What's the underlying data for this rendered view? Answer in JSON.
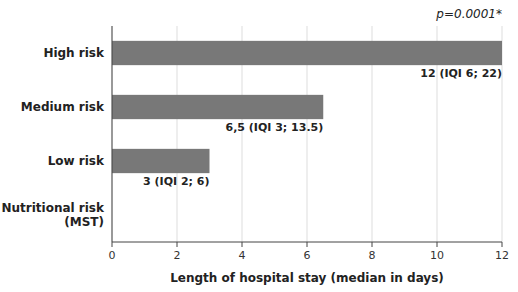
{
  "chart_data": {
    "type": "bar",
    "orientation": "horizontal",
    "categories": [
      "Nutritional risk\n(MST)",
      "Low risk",
      "Medium risk",
      "High risk"
    ],
    "values": [
      0,
      3,
      6.5,
      12
    ],
    "data_labels": true,
    "value_labels": [
      null,
      "3 (IQI 2; 6)",
      "6,5 (IQI 3; 13.5)",
      "12 (IQI 6; 22)"
    ],
    "color": "#787878",
    "xlabel": "Length of hospital stay (median in days)",
    "xlim": [
      0,
      12
    ],
    "xticks": [
      0,
      2,
      4,
      6,
      8,
      10,
      12
    ],
    "grid": true,
    "annotations": [
      "p=0.0001*"
    ]
  }
}
